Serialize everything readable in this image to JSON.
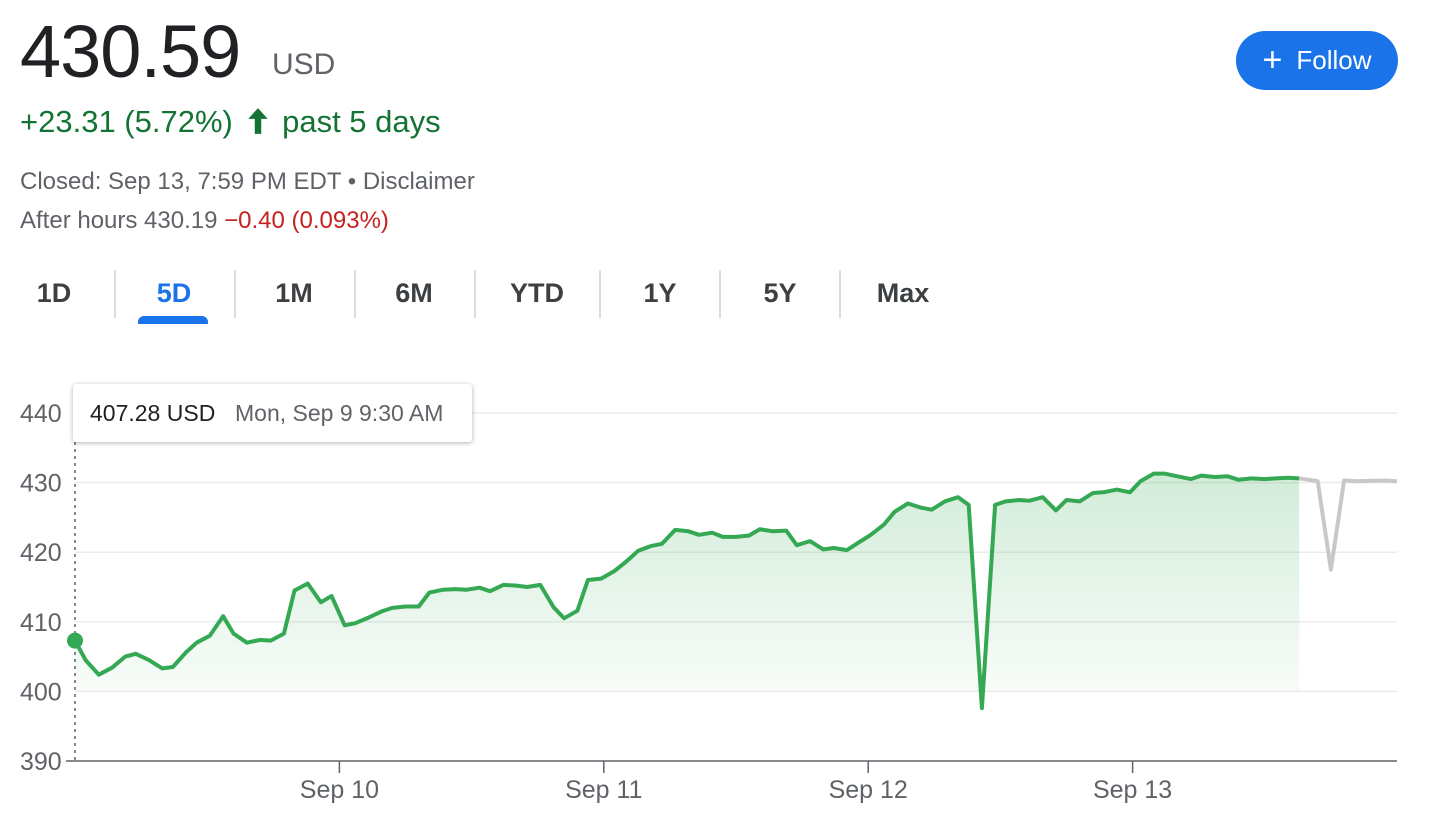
{
  "header": {
    "price": "430.59",
    "currency": "USD",
    "change_text": "+23.31 (5.72%)",
    "period": "past 5 days",
    "closed_text": "Closed: Sep 13, 7:59 PM EDT",
    "bullet": "•",
    "disclaimer": "Disclaimer",
    "after_hours_label": "After hours 430.19",
    "after_hours_change": "−0.40 (0.093%)",
    "follow_label": "Follow",
    "colors": {
      "positive": "#137333",
      "negative": "#c5221f",
      "accent": "#1a73e8"
    }
  },
  "tabs": [
    {
      "label": "1D",
      "active": false
    },
    {
      "label": "5D",
      "active": true
    },
    {
      "label": "1M",
      "active": false
    },
    {
      "label": "6M",
      "active": false
    },
    {
      "label": "YTD",
      "active": false
    },
    {
      "label": "1Y",
      "active": false
    },
    {
      "label": "5Y",
      "active": false
    },
    {
      "label": "Max",
      "active": false
    }
  ],
  "tooltip": {
    "price": "407.28 USD",
    "date": "Mon, Sep 9 9:30 AM"
  },
  "chart_data": {
    "type": "line",
    "ylim": [
      390,
      440
    ],
    "yticks": [
      390,
      400,
      410,
      420,
      430,
      440
    ],
    "xlim": [
      0,
      5
    ],
    "xticks": [
      {
        "at": 1,
        "label": "Sep 10"
      },
      {
        "at": 2,
        "label": "Sep 11"
      },
      {
        "at": 3,
        "label": "Sep 12"
      },
      {
        "at": 4,
        "label": "Sep 13"
      }
    ],
    "grid": true,
    "colors": {
      "line": "#34a853",
      "after_hours": "#c8c8c8"
    },
    "series": [
      {
        "x": [
          0,
          0.04,
          0.09,
          0.14,
          0.19,
          0.23,
          0.28,
          0.33,
          0.37,
          0.42,
          0.46,
          0.51,
          0.56,
          0.6,
          0.65,
          0.7,
          0.74,
          0.79,
          0.83,
          0.88,
          0.93,
          0.97,
          1.02,
          1.06,
          1.11,
          1.16,
          1.2,
          1.25,
          1.3,
          1.34,
          1.39,
          1.44,
          1.48,
          1.53,
          1.57,
          1.62,
          1.67,
          1.71,
          1.76,
          1.81,
          1.85,
          1.9,
          1.94,
          1.99,
          2.04,
          2.08,
          2.13,
          2.18,
          2.22,
          2.27,
          2.32,
          2.36,
          2.41,
          2.45,
          2.5,
          2.55,
          2.59,
          2.64,
          2.69,
          2.73,
          2.78,
          2.83,
          2.87,
          2.92,
          2.96,
          3.01,
          3.06,
          3.1,
          3.15,
          3.2,
          3.24,
          3.29,
          3.34,
          3.38,
          3.43,
          3.48,
          3.52,
          3.57,
          3.61,
          3.66,
          3.71,
          3.75,
          3.8,
          3.85,
          3.89,
          3.94,
          3.99,
          4.03,
          4.08,
          4.12,
          4.17,
          4.22,
          4.26,
          4.31,
          4.36,
          4.4,
          4.45,
          4.5,
          4.54,
          4.59,
          4.63
        ],
        "y": [
          407.3,
          404.5,
          402.4,
          403.4,
          405,
          405.4,
          404.5,
          403.3,
          403.5,
          405.6,
          407,
          408,
          410.8,
          408.3,
          407,
          407.4,
          407.3,
          408.3,
          414.5,
          415.5,
          412.8,
          413.7,
          409.5,
          409.8,
          410.6,
          411.5,
          412,
          412.2,
          412.2,
          414.2,
          414.6,
          414.7,
          414.6,
          414.9,
          414.4,
          415.3,
          415.2,
          415,
          415.3,
          412.1,
          410.5,
          411.6,
          416,
          416.2,
          417.3,
          418.5,
          420.2,
          420.9,
          421.2,
          423.2,
          423,
          422.5,
          422.8,
          422.2,
          422.2,
          422.4,
          423.3,
          423,
          423.1,
          421,
          421.6,
          420.4,
          420.6,
          420.3,
          421.3,
          422.5,
          424,
          425.8,
          427,
          426.4,
          426.1,
          427.3,
          427.9,
          426.8,
          397.6,
          426.8,
          427.3,
          427.5,
          427.4,
          427.9,
          426,
          427.5,
          427.3,
          428.5,
          428.6,
          429,
          428.6,
          430.2,
          431.3,
          431.3,
          430.9,
          430.5,
          431,
          430.8,
          430.9,
          430.4,
          430.6,
          430.5,
          430.6,
          430.7,
          430.6
        ]
      },
      {
        "name": "After hours",
        "x": [
          4.63,
          4.7,
          4.75,
          4.8,
          4.85,
          4.95,
          5.0
        ],
        "y": [
          430.6,
          430.2,
          417.5,
          430.3,
          430.2,
          430.3,
          430.2
        ]
      }
    ]
  }
}
